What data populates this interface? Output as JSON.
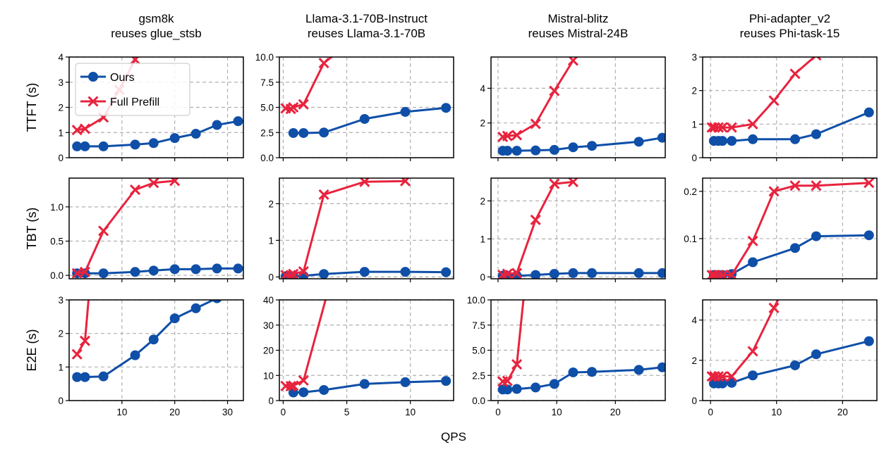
{
  "figure": {
    "xlabel": "QPS",
    "legend": {
      "placement": "upper-left of first panel",
      "entries": [
        {
          "label": "Ours",
          "marker": "circle",
          "color": "#0f4fa8"
        },
        {
          "label": "Full Prefill",
          "marker": "x",
          "color": "#e8233e"
        }
      ]
    }
  },
  "colors": {
    "ours": "#0f4fa8",
    "full_prefill": "#e8233e",
    "grid": "#b0b0b0"
  },
  "chart_data": [
    {
      "type": "line",
      "title": "gsm8k\nreuses glue_stsb",
      "ylabel": "TTFT (s)",
      "grid": true,
      "xlim": [
        0,
        33
      ],
      "ylim": [
        0,
        4
      ],
      "xticks": [
        10,
        20,
        30
      ],
      "yticks": [
        0,
        1,
        2,
        3,
        4
      ],
      "ytick_labels": [
        "0",
        "1",
        "2",
        "3",
        "4"
      ],
      "show_xticklabels": false,
      "series": [
        {
          "name": "Ours",
          "x": [
            1.5,
            3,
            6.5,
            12.5,
            16,
            20,
            24,
            28,
            32
          ],
          "y": [
            0.45,
            0.45,
            0.45,
            0.52,
            0.58,
            0.78,
            0.95,
            1.3,
            1.45
          ]
        },
        {
          "name": "Full Prefill",
          "x": [
            1.5,
            3,
            6.5,
            9.5,
            12.5
          ],
          "y": [
            1.1,
            1.15,
            1.6,
            2.7,
            3.9
          ]
        }
      ]
    },
    {
      "type": "line",
      "title": "Llama-3.1-70B-Instruct\nreuses Llama-3.1-70B",
      "ylabel": "",
      "grid": true,
      "xlim": [
        -0.3,
        13.4
      ],
      "ylim": [
        0,
        10
      ],
      "xticks": [
        0,
        5,
        10
      ],
      "yticks": [
        0,
        2.5,
        5,
        7.5,
        10
      ],
      "ytick_labels": [
        "0.0",
        "2.5",
        "5.0",
        "7.5",
        "10.0"
      ],
      "show_xticklabels": false,
      "series": [
        {
          "name": "Ours",
          "x": [
            0.8,
            1.6,
            3.2,
            6.4,
            9.6,
            12.8
          ],
          "y": [
            2.45,
            2.45,
            2.5,
            3.85,
            4.55,
            4.95
          ]
        },
        {
          "name": "Full Prefill",
          "x": [
            0.2,
            0.6,
            0.8,
            1.6,
            3.2,
            4.8
          ],
          "y": [
            4.9,
            4.85,
            5.0,
            5.3,
            9.4,
            11
          ]
        }
      ]
    },
    {
      "type": "line",
      "title": "Mistral-blitz\nreuses Mistral-24B",
      "ylabel": "",
      "grid": true,
      "xlim": [
        -1.2,
        28.5
      ],
      "ylim": [
        0,
        5.8
      ],
      "xticks": [
        0,
        10,
        20
      ],
      "yticks": [
        2,
        4
      ],
      "ytick_labels": [
        "2",
        "4"
      ],
      "show_xticklabels": false,
      "series": [
        {
          "name": "Ours",
          "x": [
            0.8,
            1.6,
            3.2,
            6.4,
            9.6,
            12.8,
            16,
            24,
            28
          ],
          "y": [
            0.4,
            0.4,
            0.4,
            0.42,
            0.45,
            0.6,
            0.68,
            0.92,
            1.15
          ]
        },
        {
          "name": "Full Prefill",
          "x": [
            0.8,
            1.6,
            3.2,
            6.4,
            9.6,
            12.8
          ],
          "y": [
            1.2,
            1.25,
            1.3,
            1.95,
            3.85,
            5.6
          ]
        }
      ]
    },
    {
      "type": "line",
      "title": "Phi-adapter_v2\nreuses Phi-task-15",
      "ylabel": "",
      "grid": true,
      "xlim": [
        -1.2,
        25.2
      ],
      "ylim": [
        0,
        3
      ],
      "xticks": [
        0,
        10,
        20
      ],
      "yticks": [
        0,
        1,
        2,
        3
      ],
      "ytick_labels": [
        "0",
        "1",
        "2",
        "3"
      ],
      "show_xticklabels": false,
      "series": [
        {
          "name": "Ours",
          "x": [
            0.5,
            1.2,
            1.8,
            3.2,
            6.4,
            12.8,
            16,
            24
          ],
          "y": [
            0.5,
            0.5,
            0.5,
            0.5,
            0.55,
            0.55,
            0.7,
            1.35
          ]
        },
        {
          "name": "Full Prefill",
          "x": [
            0.2,
            0.6,
            1.2,
            1.8,
            3.2,
            6.4,
            9.6,
            12.8,
            16
          ],
          "y": [
            0.9,
            0.9,
            0.9,
            0.9,
            0.9,
            1.0,
            1.7,
            2.5,
            3.05
          ]
        }
      ]
    },
    {
      "type": "line",
      "title": "",
      "ylabel": "TBT (s)",
      "grid": true,
      "xlim": [
        0,
        33
      ],
      "ylim": [
        -0.05,
        1.42
      ],
      "xticks": [
        10,
        20,
        30
      ],
      "yticks": [
        0,
        0.5,
        1
      ],
      "ytick_labels": [
        "0.0",
        "0.5",
        "1.0"
      ],
      "show_xticklabels": false,
      "series": [
        {
          "name": "Ours",
          "x": [
            1.5,
            3,
            6.5,
            12.5,
            16,
            20,
            24,
            28,
            32
          ],
          "y": [
            0.03,
            0.03,
            0.03,
            0.05,
            0.07,
            0.09,
            0.09,
            0.1,
            0.1
          ]
        },
        {
          "name": "Full Prefill",
          "x": [
            1.5,
            3,
            6.5,
            12.5,
            16,
            20
          ],
          "y": [
            0.03,
            0.05,
            0.65,
            1.25,
            1.35,
            1.38
          ]
        }
      ]
    },
    {
      "type": "line",
      "title": "",
      "ylabel": "",
      "grid": true,
      "xlim": [
        -0.3,
        13.4
      ],
      "ylim": [
        -0.05,
        2.7
      ],
      "xticks": [
        0,
        5,
        10
      ],
      "yticks": [
        0,
        1,
        2
      ],
      "ytick_labels": [
        "0",
        "1",
        "2"
      ],
      "show_xticklabels": false,
      "series": [
        {
          "name": "Ours",
          "x": [
            0.2,
            0.6,
            0.8,
            1.6,
            3.2,
            6.4,
            9.6,
            12.8
          ],
          "y": [
            0.02,
            0.02,
            0.02,
            0.03,
            0.08,
            0.14,
            0.14,
            0.13
          ]
        },
        {
          "name": "Full Prefill",
          "x": [
            0.2,
            0.6,
            0.8,
            1.6,
            3.2,
            6.4,
            9.6
          ],
          "y": [
            0.05,
            0.05,
            0.08,
            0.15,
            2.25,
            2.6,
            2.62
          ]
        }
      ]
    },
    {
      "type": "line",
      "title": "",
      "ylabel": "",
      "grid": true,
      "xlim": [
        -1.2,
        28.5
      ],
      "ylim": [
        -0.05,
        2.6
      ],
      "xticks": [
        0,
        10,
        20
      ],
      "yticks": [
        0,
        1,
        2
      ],
      "ytick_labels": [
        "0",
        "1",
        "2"
      ],
      "show_xticklabels": false,
      "series": [
        {
          "name": "Ours",
          "x": [
            0.8,
            1.6,
            3.2,
            6.4,
            9.6,
            12.8,
            16,
            24,
            28
          ],
          "y": [
            0.03,
            0.03,
            0.03,
            0.05,
            0.08,
            0.1,
            0.1,
            0.1,
            0.1
          ]
        },
        {
          "name": "Full Prefill",
          "x": [
            0.8,
            1.6,
            3.2,
            6.4,
            9.6,
            12.8
          ],
          "y": [
            0.05,
            0.08,
            0.1,
            1.5,
            2.45,
            2.5
          ]
        }
      ]
    },
    {
      "type": "line",
      "title": "",
      "ylabel": "",
      "grid": true,
      "xlim": [
        -1.2,
        25.2
      ],
      "ylim": [
        0.015,
        0.228
      ],
      "xticks": [
        0,
        10,
        20
      ],
      "yticks": [
        0.1,
        0.2
      ],
      "ytick_labels": [
        "0.1",
        "0.2"
      ],
      "show_xticklabels": false,
      "series": [
        {
          "name": "Ours",
          "x": [
            0.5,
            1.2,
            1.8,
            3.2,
            6.4,
            12.8,
            16,
            24
          ],
          "y": [
            0.023,
            0.023,
            0.023,
            0.025,
            0.05,
            0.08,
            0.105,
            0.107
          ]
        },
        {
          "name": "Full Prefill",
          "x": [
            0.2,
            0.6,
            1.2,
            1.8,
            3.2,
            6.4,
            9.6,
            12.8,
            16,
            24
          ],
          "y": [
            0.023,
            0.023,
            0.023,
            0.023,
            0.023,
            0.095,
            0.2,
            0.212,
            0.212,
            0.218
          ]
        }
      ]
    },
    {
      "type": "line",
      "title": "",
      "ylabel": "E2E (s)",
      "grid": true,
      "xlim": [
        0,
        33
      ],
      "ylim": [
        0,
        3
      ],
      "xticks": [
        10,
        20,
        30
      ],
      "yticks": [
        0,
        1,
        2,
        3
      ],
      "ytick_labels": [
        "0",
        "1",
        "2",
        "3"
      ],
      "show_xticklabels": true,
      "xtick_labels": [
        "10",
        "20",
        "30"
      ],
      "series": [
        {
          "name": "Ours",
          "x": [
            1.5,
            3,
            6.5,
            12.5,
            16,
            20,
            24,
            28,
            32
          ],
          "y": [
            0.7,
            0.7,
            0.72,
            1.35,
            1.82,
            2.45,
            2.75,
            3.05,
            3.3
          ]
        },
        {
          "name": "Full Prefill",
          "x": [
            1.5,
            3,
            4
          ],
          "y": [
            1.38,
            1.78,
            3.6
          ]
        }
      ]
    },
    {
      "type": "line",
      "title": "",
      "ylabel": "",
      "grid": true,
      "xlim": [
        -0.3,
        13.4
      ],
      "ylim": [
        0,
        40
      ],
      "xticks": [
        0,
        5,
        10
      ],
      "yticks": [
        0,
        10,
        20,
        30,
        40
      ],
      "ytick_labels": [
        "0",
        "10",
        "20",
        "30",
        "40"
      ],
      "show_xticklabels": true,
      "xtick_labels": [
        "0",
        "5",
        "10"
      ],
      "series": [
        {
          "name": "Ours",
          "x": [
            0.8,
            1.6,
            3.2,
            6.4,
            9.6,
            12.8
          ],
          "y": [
            3.2,
            3.3,
            4.2,
            6.6,
            7.3,
            7.8
          ]
        },
        {
          "name": "Full Prefill",
          "x": [
            0.2,
            0.6,
            0.8,
            1.6,
            3.6
          ],
          "y": [
            5.8,
            5.7,
            5.9,
            8.0,
            45
          ]
        }
      ]
    },
    {
      "type": "line",
      "title": "",
      "ylabel": "",
      "grid": true,
      "xlim": [
        -1.2,
        28.5
      ],
      "ylim": [
        0,
        10
      ],
      "xticks": [
        0,
        10,
        20
      ],
      "yticks": [
        0,
        2.5,
        5,
        7.5,
        10
      ],
      "ytick_labels": [
        "0.0",
        "2.5",
        "5.0",
        "7.5",
        "10.0"
      ],
      "show_xticklabels": true,
      "xtick_labels": [
        "0",
        "10",
        "20"
      ],
      "series": [
        {
          "name": "Ours",
          "x": [
            0.8,
            1.6,
            3.2,
            6.4,
            9.6,
            12.8,
            16,
            24,
            28
          ],
          "y": [
            1.1,
            1.1,
            1.15,
            1.3,
            1.65,
            2.8,
            2.85,
            3.05,
            3.3
          ]
        },
        {
          "name": "Full Prefill",
          "x": [
            0.8,
            1.6,
            3.2,
            4.5
          ],
          "y": [
            1.9,
            1.95,
            3.6,
            11
          ]
        }
      ]
    },
    {
      "type": "line",
      "title": "",
      "ylabel": "",
      "grid": true,
      "xlim": [
        -1.2,
        25.2
      ],
      "ylim": [
        0,
        5
      ],
      "xticks": [
        0,
        10,
        20
      ],
      "yticks": [
        0,
        2,
        4
      ],
      "ytick_labels": [
        "0",
        "2",
        "4"
      ],
      "show_xticklabels": true,
      "xtick_labels": [
        "0",
        "10",
        "20"
      ],
      "series": [
        {
          "name": "Ours",
          "x": [
            0.5,
            1.2,
            1.8,
            3.2,
            6.4,
            12.8,
            16,
            24
          ],
          "y": [
            0.85,
            0.85,
            0.85,
            0.88,
            1.25,
            1.75,
            2.3,
            2.95
          ]
        },
        {
          "name": "Full Prefill",
          "x": [
            0.2,
            0.6,
            1.2,
            1.8,
            3.2,
            6.4,
            9.6,
            11
          ],
          "y": [
            1.2,
            1.2,
            1.2,
            1.2,
            1.2,
            2.45,
            4.6,
            5.5
          ]
        }
      ]
    }
  ]
}
